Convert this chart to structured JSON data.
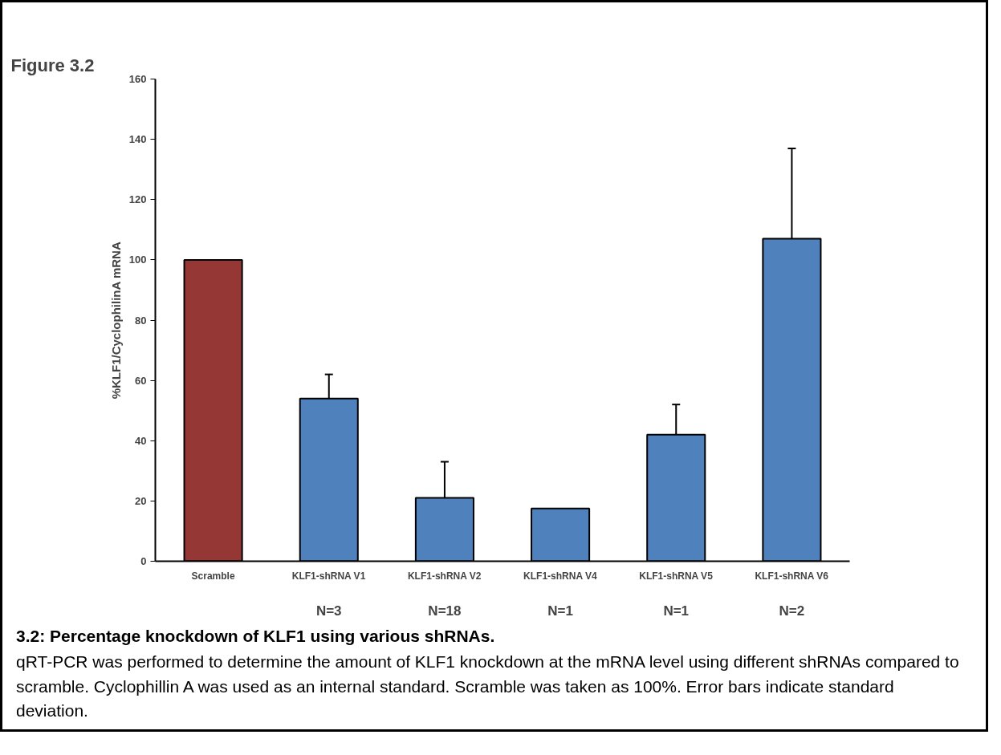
{
  "chart_data": {
    "type": "bar",
    "title": "Figure 3.2",
    "ylabel": "%KLF1/CyclophilinA mRNA",
    "categories": [
      "Scramble",
      "KLF1-shRNA V1",
      "KLF1-shRNA V2",
      "KLF1-shRNA V4",
      "KLF1-shRNA V5",
      "KLF1-shRNA V6"
    ],
    "values": [
      100,
      54,
      21,
      17.5,
      42,
      107
    ],
    "colors": [
      "#953735",
      "#4f81bd",
      "#4f81bd",
      "#4f81bd",
      "#4f81bd",
      "#4f81bd"
    ],
    "errors": [
      null,
      [
        54,
        62
      ],
      [
        21,
        33
      ],
      null,
      [
        42,
        52
      ],
      [
        107,
        137
      ]
    ],
    "ylim": [
      0,
      160
    ],
    "yticks": [
      0,
      20,
      40,
      60,
      80,
      100,
      120,
      140,
      160
    ],
    "grid": false,
    "annotations": [
      "N=3",
      "N=18",
      "N=1",
      "N=1",
      "N=2",
      "3.2: Percentage knockdown of KLF1 using various shRNAs.",
      "qRT-PCR was performed to determine the amount of KLF1 knockdown at the mRNA level using different shRNAs compared to scramble. Cyclophillin A was used as an internal standard. Scramble was taken as 100%. Error bars indicate standard deviation."
    ]
  }
}
